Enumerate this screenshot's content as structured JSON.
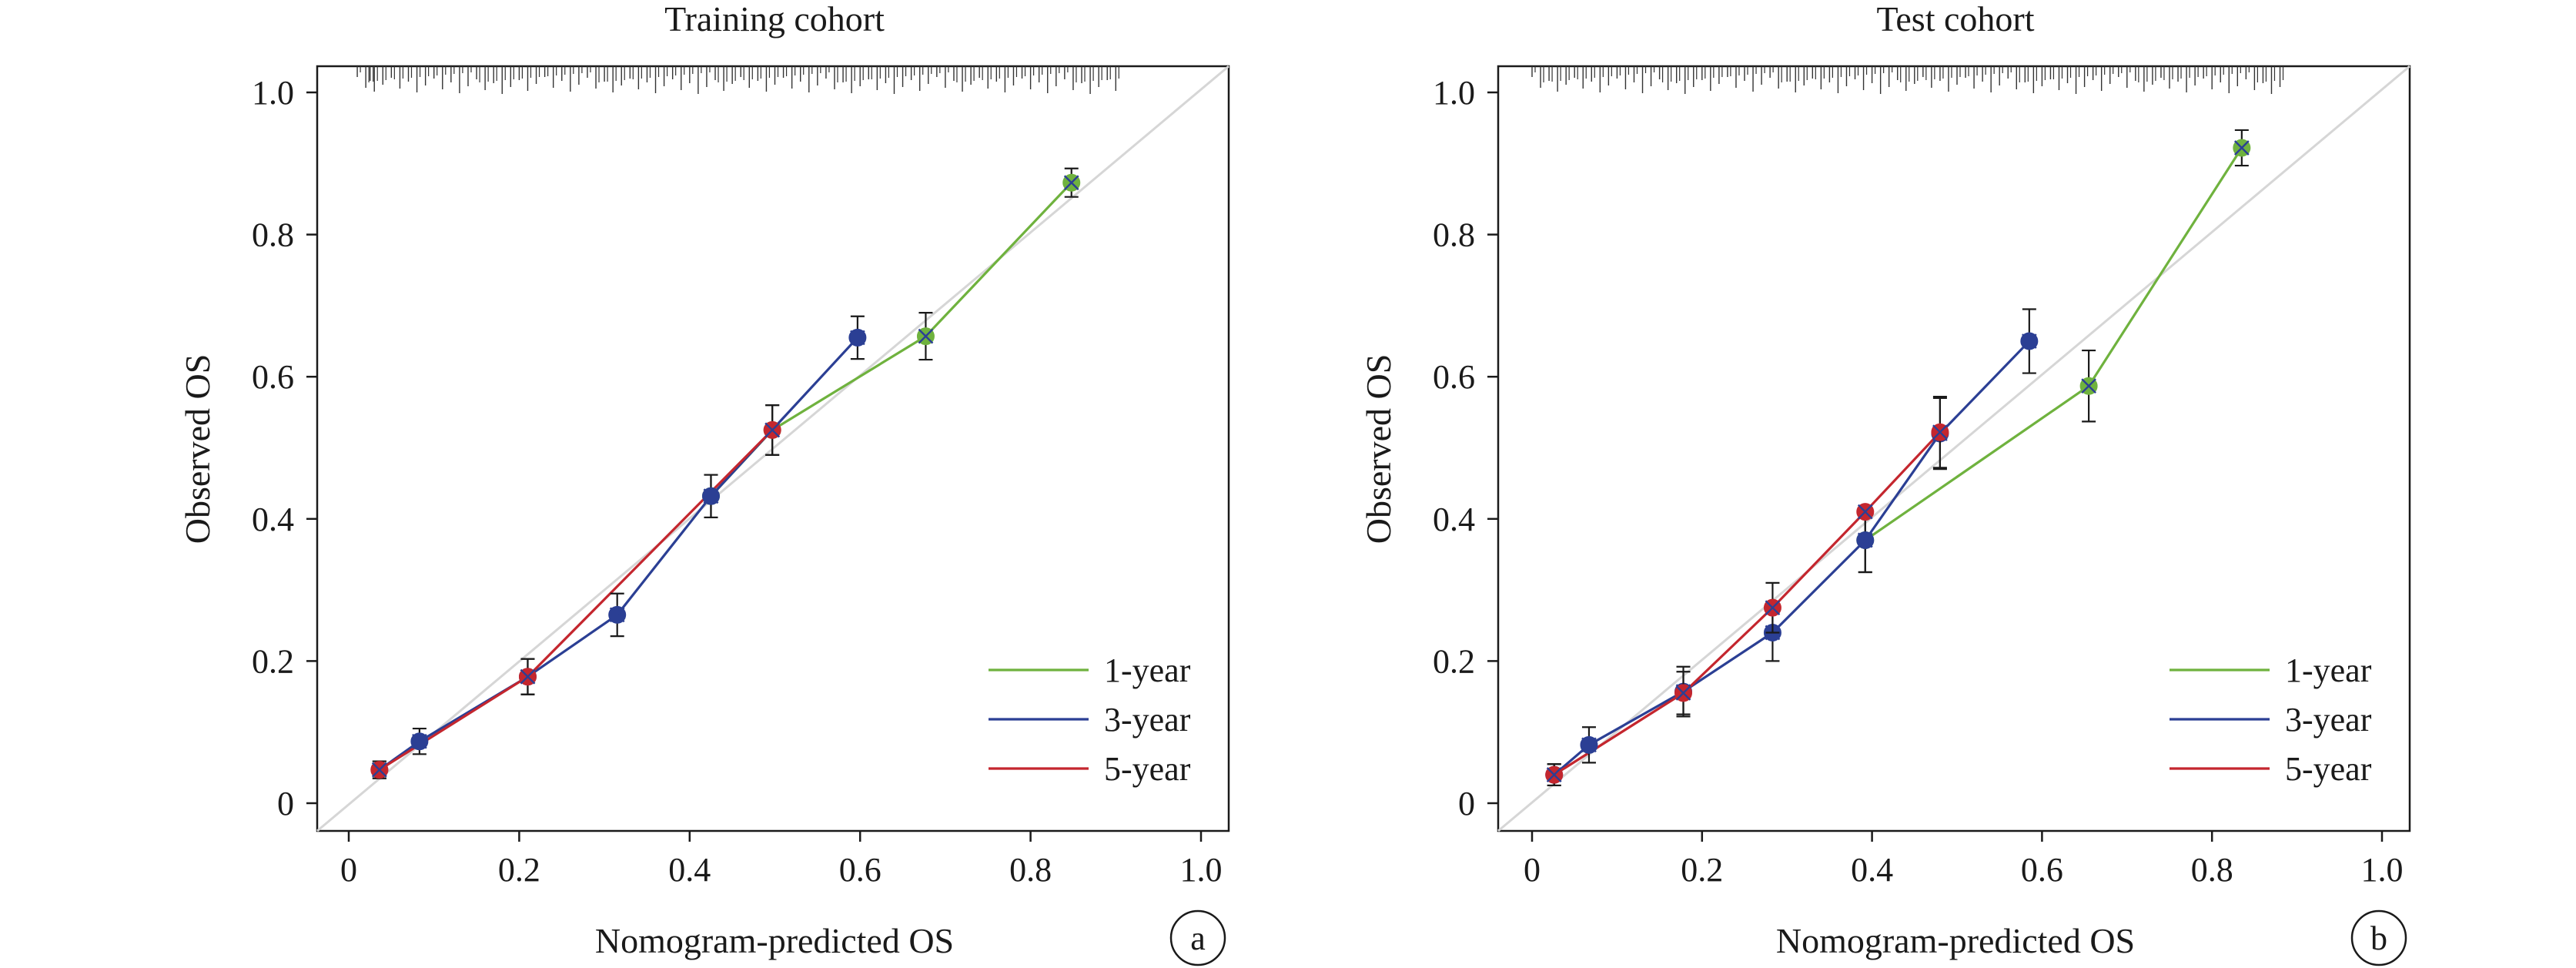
{
  "chart_data": [
    {
      "id": "training",
      "type": "line",
      "title": "Training cohort",
      "xlabel": "Nomogram-predicted OS",
      "ylabel": "Observed OS",
      "panel_label": "a",
      "xlim": [
        0,
        1.0
      ],
      "ylim": [
        0,
        1.0
      ],
      "xticks": [
        "0",
        "0.2",
        "0.4",
        "0.6",
        "0.8",
        "1.0"
      ],
      "yticks": [
        "0",
        "0.2",
        "0.4",
        "0.6",
        "0.8",
        "1.0"
      ],
      "reference_line": true,
      "legend_position": "bottom-right",
      "series": [
        {
          "name": "1-year",
          "color": "#6fb23e",
          "x": [
            0.425,
            0.497,
            0.677,
            0.848
          ],
          "y": [
            0.432,
            0.525,
            0.657,
            0.873
          ],
          "err": [
            0.03,
            0.035,
            0.033,
            0.02
          ]
        },
        {
          "name": "3-year",
          "color": "#2b3f94",
          "x": [
            0.036,
            0.083,
            0.21,
            0.315,
            0.425,
            0.597
          ],
          "y": [
            0.047,
            0.087,
            0.178,
            0.265,
            0.432,
            0.655
          ],
          "err": [
            0.012,
            0.018,
            0.025,
            0.03,
            0.03,
            0.03
          ]
        },
        {
          "name": "5-year",
          "color": "#c4262e",
          "x": [
            0.036,
            0.21,
            0.497
          ],
          "y": [
            0.047,
            0.178,
            0.525
          ],
          "err": [
            0.012,
            0.025,
            0.035
          ]
        }
      ],
      "rug_ticks": [
        0.01,
        0.02,
        0.025,
        0.03,
        0.04,
        0.05,
        0.06,
        0.07,
        0.08,
        0.09,
        0.1,
        0.11,
        0.12,
        0.13,
        0.14,
        0.15,
        0.16,
        0.17,
        0.18,
        0.19,
        0.2,
        0.21,
        0.22,
        0.23,
        0.24,
        0.25,
        0.26,
        0.27,
        0.28,
        0.29,
        0.3,
        0.31,
        0.32,
        0.33,
        0.34,
        0.35,
        0.36,
        0.37,
        0.38,
        0.39,
        0.4,
        0.41,
        0.42,
        0.43,
        0.44,
        0.45,
        0.46,
        0.47,
        0.48,
        0.49,
        0.5,
        0.51,
        0.52,
        0.53,
        0.54,
        0.55,
        0.56,
        0.57,
        0.58,
        0.59,
        0.6,
        0.61,
        0.62,
        0.63,
        0.64,
        0.65,
        0.66,
        0.67,
        0.68,
        0.69,
        0.7,
        0.71,
        0.72,
        0.73,
        0.74,
        0.75,
        0.76,
        0.77,
        0.78,
        0.79,
        0.8,
        0.81,
        0.82,
        0.83,
        0.84,
        0.85,
        0.86,
        0.87,
        0.88,
        0.89,
        0.9
      ]
    },
    {
      "id": "test",
      "type": "line",
      "title": "Test cohort",
      "xlabel": "Nomogram-predicted OS",
      "ylabel": "Observed OS",
      "panel_label": "b",
      "xlim": [
        0,
        1.0
      ],
      "ylim": [
        0,
        1.0
      ],
      "xticks": [
        "0",
        "0.2",
        "0.4",
        "0.6",
        "0.8",
        "1.0"
      ],
      "yticks": [
        "0",
        "0.2",
        "0.4",
        "0.6",
        "0.8",
        "1.0"
      ],
      "reference_line": true,
      "legend_position": "bottom-right",
      "series": [
        {
          "name": "1-year",
          "color": "#6fb23e",
          "x": [
            0.392,
            0.655,
            0.835
          ],
          "y": [
            0.37,
            0.587,
            0.922
          ],
          "err": [
            0.045,
            0.05,
            0.025
          ]
        },
        {
          "name": "3-year",
          "color": "#2b3f94",
          "x": [
            0.026,
            0.067,
            0.178,
            0.283,
            0.392,
            0.48,
            0.585
          ],
          "y": [
            0.04,
            0.082,
            0.157,
            0.24,
            0.37,
            0.52,
            0.65
          ],
          "err": [
            0.015,
            0.025,
            0.035,
            0.04,
            0.045,
            0.05,
            0.045
          ]
        },
        {
          "name": "5-year",
          "color": "#c4262e",
          "x": [
            0.026,
            0.178,
            0.283,
            0.392,
            0.48
          ],
          "y": [
            0.04,
            0.155,
            0.275,
            0.41,
            0.522
          ],
          "err": [
            0.015,
            0.03,
            0.035,
            0.0,
            0.05
          ]
        }
      ],
      "rug_ticks": [
        0.0,
        0.01,
        0.02,
        0.03,
        0.04,
        0.05,
        0.06,
        0.07,
        0.08,
        0.09,
        0.1,
        0.11,
        0.12,
        0.13,
        0.14,
        0.15,
        0.16,
        0.17,
        0.18,
        0.19,
        0.2,
        0.21,
        0.22,
        0.23,
        0.24,
        0.25,
        0.26,
        0.27,
        0.28,
        0.29,
        0.3,
        0.31,
        0.32,
        0.33,
        0.34,
        0.35,
        0.36,
        0.37,
        0.38,
        0.39,
        0.4,
        0.41,
        0.42,
        0.43,
        0.44,
        0.45,
        0.46,
        0.47,
        0.48,
        0.49,
        0.5,
        0.51,
        0.52,
        0.53,
        0.54,
        0.55,
        0.56,
        0.57,
        0.58,
        0.59,
        0.6,
        0.61,
        0.62,
        0.63,
        0.64,
        0.65,
        0.66,
        0.67,
        0.68,
        0.69,
        0.7,
        0.71,
        0.72,
        0.73,
        0.74,
        0.75,
        0.76,
        0.77,
        0.78,
        0.79,
        0.8,
        0.81,
        0.82,
        0.83,
        0.84,
        0.85,
        0.86,
        0.87,
        0.88
      ]
    }
  ]
}
